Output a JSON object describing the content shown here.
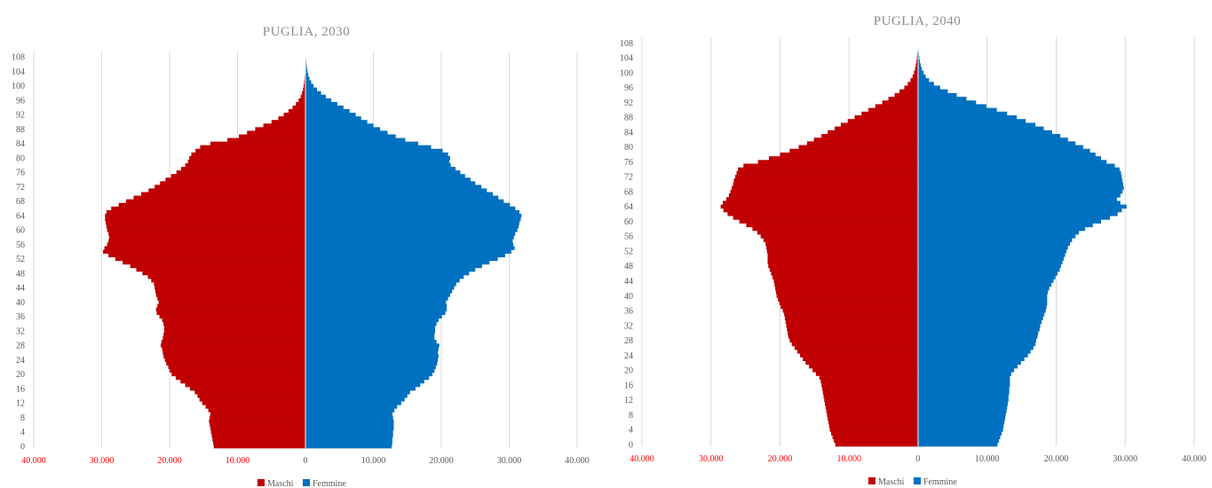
{
  "colors": {
    "maschi": "#c00000",
    "femmine": "#0070c0",
    "negative_tick": "#ff0000",
    "positive_tick": "#595959",
    "grid": "#d9d9d9"
  },
  "chart_data": [
    {
      "type": "bar",
      "orientation": "horizontal-population-pyramid",
      "title": "PUGLIA, 2030",
      "xlim": [
        -40000,
        40000
      ],
      "xticks": [
        "40.000",
        "30.000",
        "20.000",
        "10.000",
        "0",
        "10.000",
        "20.000",
        "30.000",
        "40.000"
      ],
      "yticks": [
        "0",
        "4",
        "8",
        "12",
        "16",
        "20",
        "24",
        "28",
        "32",
        "36",
        "40",
        "44",
        "48",
        "52",
        "56",
        "60",
        "64",
        "68",
        "72",
        "76",
        "80",
        "84",
        "88",
        "92",
        "96",
        "100",
        "104",
        "108"
      ],
      "grid": "vertical",
      "legend": "bottom",
      "ages": [
        0,
        109
      ],
      "series": [
        {
          "name": "Maschi",
          "values": [
            13500,
            13600,
            13700,
            13800,
            13900,
            14000,
            14100,
            14200,
            14100,
            14000,
            14300,
            14700,
            15200,
            15600,
            15900,
            16300,
            17000,
            17700,
            18400,
            19100,
            19700,
            20000,
            20200,
            20500,
            20700,
            20900,
            21000,
            21100,
            21300,
            21200,
            21000,
            20900,
            20800,
            20800,
            20900,
            21100,
            21500,
            21900,
            22000,
            21800,
            21600,
            21800,
            22000,
            22100,
            22200,
            22300,
            22700,
            23200,
            24000,
            24900,
            25800,
            26900,
            28000,
            29000,
            29800,
            29600,
            29200,
            29000,
            28900,
            29000,
            29200,
            29300,
            29400,
            29500,
            29500,
            29300,
            28600,
            27500,
            26400,
            25300,
            24200,
            23100,
            22200,
            21400,
            20600,
            19800,
            19000,
            18300,
            17700,
            17300,
            17100,
            16800,
            16200,
            15500,
            14000,
            11500,
            9800,
            8600,
            7400,
            6200,
            5000,
            4000,
            3200,
            2500,
            1900,
            1400,
            1000,
            700,
            500,
            350,
            250,
            180,
            130,
            90,
            60,
            40,
            30,
            20,
            15,
            10
          ]
        },
        {
          "name": "Femmine",
          "values": [
            12700,
            12800,
            12800,
            12900,
            12900,
            13000,
            13000,
            13000,
            12900,
            12800,
            13100,
            13500,
            14100,
            14600,
            15000,
            15400,
            16200,
            16900,
            17500,
            18200,
            18700,
            19000,
            19200,
            19400,
            19500,
            19600,
            19500,
            19600,
            19700,
            19300,
            19000,
            19000,
            19100,
            19100,
            19300,
            19600,
            20100,
            20600,
            20800,
            20800,
            20700,
            21000,
            21300,
            21600,
            21900,
            22200,
            22700,
            23300,
            24100,
            25000,
            26000,
            27100,
            28300,
            29400,
            30300,
            30800,
            30600,
            30500,
            30700,
            30900,
            31200,
            31400,
            31500,
            31700,
            31800,
            31500,
            30900,
            30100,
            29200,
            28400,
            27600,
            26700,
            25900,
            25000,
            24300,
            23500,
            22800,
            22100,
            21400,
            21200,
            21300,
            21000,
            20200,
            18500,
            16600,
            14700,
            13300,
            12100,
            11000,
            10000,
            9100,
            8200,
            7400,
            6500,
            5600,
            4700,
            3800,
            3000,
            2300,
            1700,
            1200,
            850,
            600,
            420,
            300,
            220,
            150,
            100,
            70,
            40
          ]
        }
      ]
    },
    {
      "type": "bar",
      "orientation": "horizontal-population-pyramid",
      "title": "PUGLIA, 2040",
      "xlim": [
        -40000,
        40000
      ],
      "xticks": [
        "40.000",
        "30.000",
        "20.000",
        "10.000",
        "0",
        "10.000",
        "20.000",
        "30.000",
        "40.000"
      ],
      "yticks": [
        "0",
        "4",
        "8",
        "12",
        "16",
        "20",
        "24",
        "28",
        "32",
        "36",
        "40",
        "44",
        "48",
        "52",
        "56",
        "60",
        "64",
        "68",
        "72",
        "76",
        "80",
        "84",
        "88",
        "92",
        "96",
        "100",
        "104",
        "108"
      ],
      "grid": "vertical",
      "legend": "bottom",
      "ages": [
        0,
        109
      ],
      "series": [
        {
          "name": "Maschi",
          "values": [
            12000,
            12200,
            12400,
            12600,
            12800,
            12900,
            13000,
            13100,
            13200,
            13300,
            13400,
            13500,
            13600,
            13700,
            13800,
            13900,
            14000,
            14100,
            14300,
            14800,
            15300,
            15800,
            16300,
            16700,
            17100,
            17500,
            17900,
            18300,
            18600,
            18800,
            18900,
            19000,
            19100,
            19200,
            19300,
            19400,
            19600,
            19900,
            20100,
            20300,
            20500,
            20600,
            20700,
            20800,
            20900,
            21100,
            21300,
            21500,
            21700,
            21800,
            21800,
            21800,
            21900,
            22000,
            22100,
            22400,
            22800,
            23300,
            24000,
            24900,
            25900,
            26800,
            27600,
            28200,
            28600,
            28300,
            27800,
            27400,
            27200,
            27000,
            26800,
            26700,
            26500,
            26300,
            26100,
            25300,
            23200,
            21600,
            20000,
            18600,
            17300,
            16100,
            15100,
            14000,
            13100,
            12100,
            11200,
            10200,
            9200,
            8200,
            7200,
            6200,
            5200,
            4300,
            3400,
            2700,
            2000,
            1500,
            1100,
            800,
            600,
            450,
            330,
            240,
            170,
            120,
            80,
            50,
            30,
            20
          ]
        },
        {
          "name": "Femmine",
          "values": [
            11500,
            11700,
            11900,
            12100,
            12300,
            12400,
            12500,
            12600,
            12700,
            12800,
            12900,
            13000,
            13100,
            13100,
            13200,
            13200,
            13300,
            13300,
            13300,
            13500,
            13900,
            14400,
            14900,
            15400,
            15900,
            16300,
            16700,
            17000,
            17100,
            17300,
            17400,
            17600,
            17700,
            17900,
            18100,
            18300,
            18500,
            18600,
            18700,
            18700,
            18700,
            18800,
            19000,
            19300,
            19600,
            19900,
            20200,
            20500,
            20700,
            20900,
            21100,
            21300,
            21500,
            21700,
            22000,
            22300,
            22800,
            23300,
            24200,
            25300,
            26500,
            27800,
            28900,
            29500,
            30200,
            29300,
            28800,
            29300,
            29600,
            29800,
            29700,
            29600,
            29500,
            29400,
            29200,
            28500,
            27300,
            26500,
            25700,
            24900,
            23900,
            22800,
            21700,
            20600,
            19400,
            18200,
            17000,
            15600,
            14300,
            12900,
            11400,
            9900,
            8400,
            7000,
            5600,
            4300,
            3200,
            2300,
            1600,
            1100,
            800,
            550,
            380,
            260,
            180,
            120,
            80,
            50,
            30,
            20
          ]
        }
      ]
    }
  ]
}
